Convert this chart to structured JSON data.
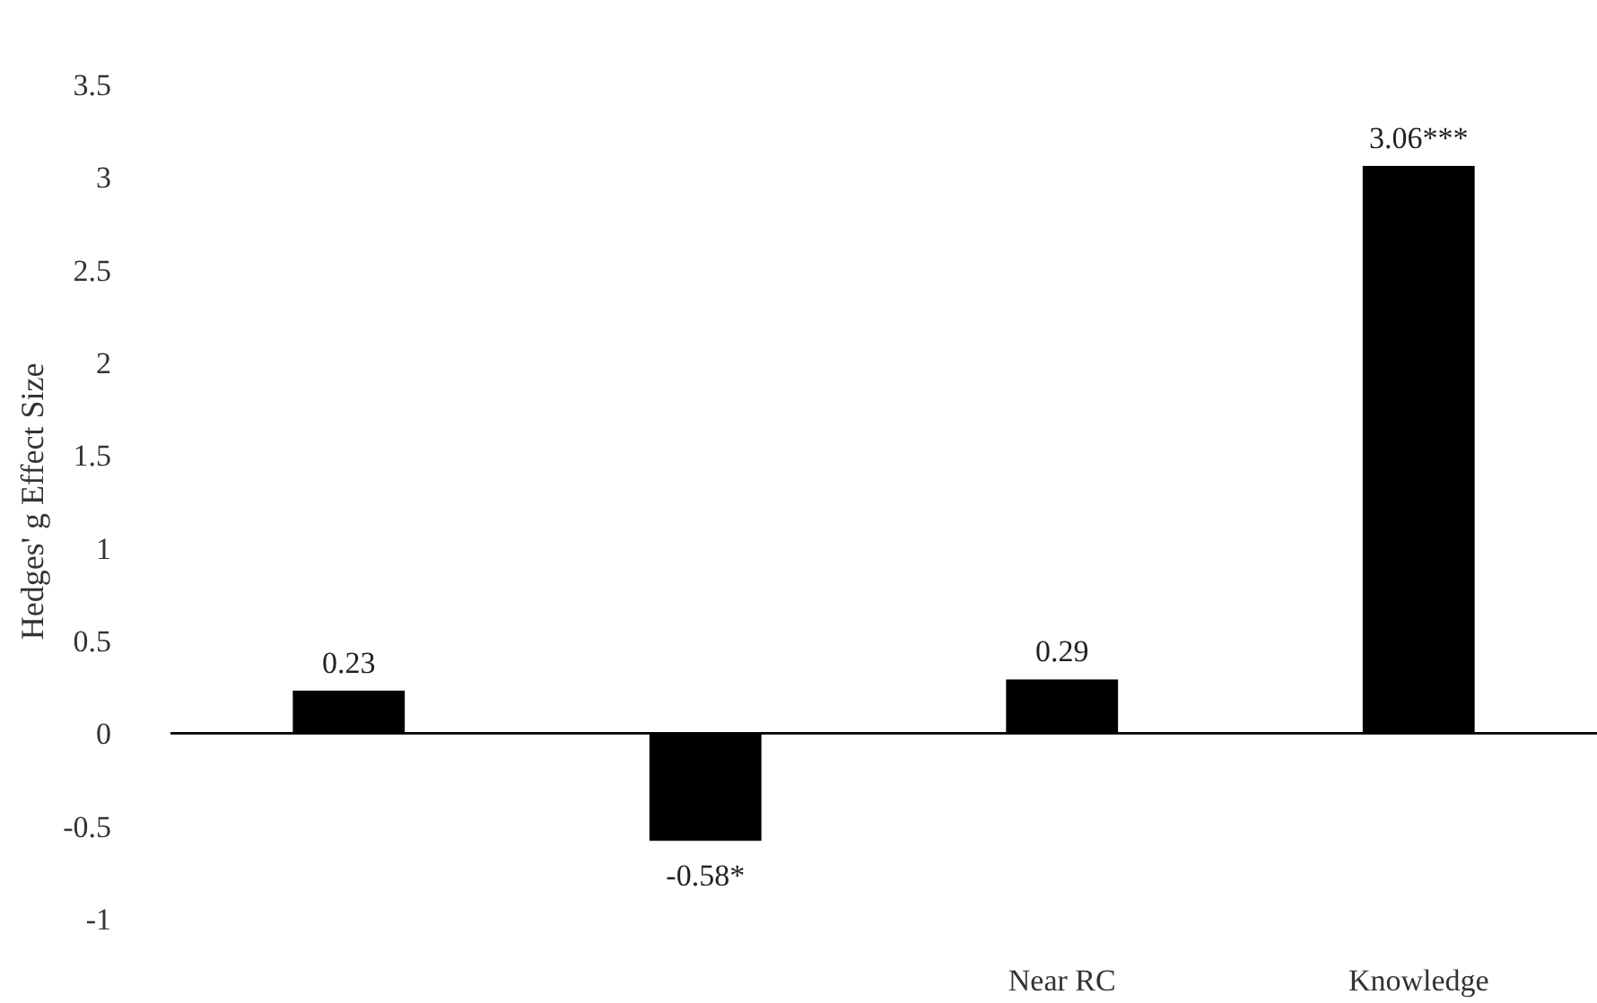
{
  "chart_data": {
    "type": "bar",
    "ylabel": "Hedges' g Effect Size",
    "categories": [
      null,
      null,
      "Near RC",
      "Knowledge"
    ],
    "values": [
      0.23,
      -0.58,
      0.29,
      3.06
    ],
    "value_labels": [
      "0.23",
      "-0.58*",
      "0.29",
      "3.06***"
    ],
    "color": "#000000",
    "ylim": [
      -1,
      3.5
    ],
    "yticks": [
      -1,
      -0.5,
      0,
      0.5,
      1,
      1.5,
      2,
      2.5,
      3,
      3.5
    ]
  }
}
